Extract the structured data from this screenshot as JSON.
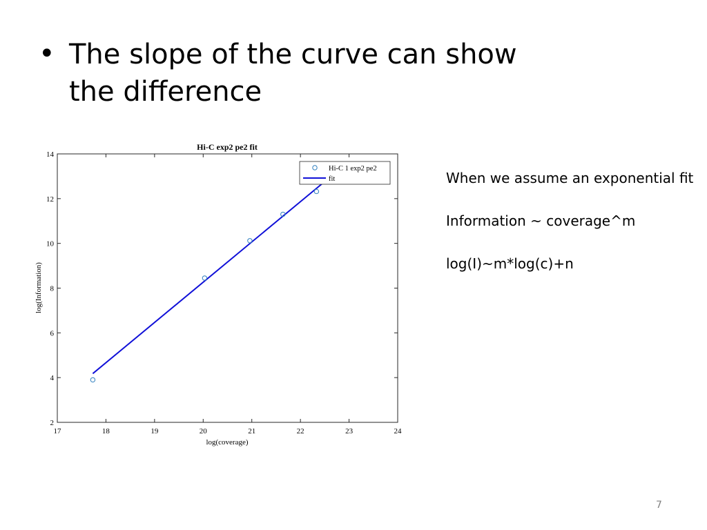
{
  "slide": {
    "bullet_text": "The slope of the curve can show the difference",
    "notes": [
      "When we assume an exponential fit",
      "Information ~ coverage^m",
      "log(I)~m*log(c)+n"
    ],
    "page_number": "7"
  },
  "chart_data": {
    "type": "scatter",
    "title": "Hi-C exp2 pe2 fit",
    "xlabel": "log(coverage)",
    "ylabel": "log(Information)",
    "xlim": [
      17,
      24
    ],
    "ylim": [
      2,
      14
    ],
    "xticks": [
      17,
      18,
      19,
      20,
      21,
      22,
      23,
      24
    ],
    "yticks": [
      2,
      4,
      6,
      8,
      10,
      12,
      14
    ],
    "grid": false,
    "legend_position": "top-right",
    "series": [
      {
        "name": "Hi-C 1 exp2 pe2",
        "kind": "points",
        "x": [
          17.73,
          20.03,
          20.96,
          21.64,
          22.33
        ],
        "y": [
          3.9,
          8.45,
          10.12,
          11.3,
          12.32
        ],
        "color": "#2f7fbf"
      },
      {
        "name": "fit",
        "kind": "line",
        "x": [
          17.73,
          22.52
        ],
        "y": [
          4.18,
          12.8
        ],
        "color": "#1010d8"
      }
    ]
  }
}
